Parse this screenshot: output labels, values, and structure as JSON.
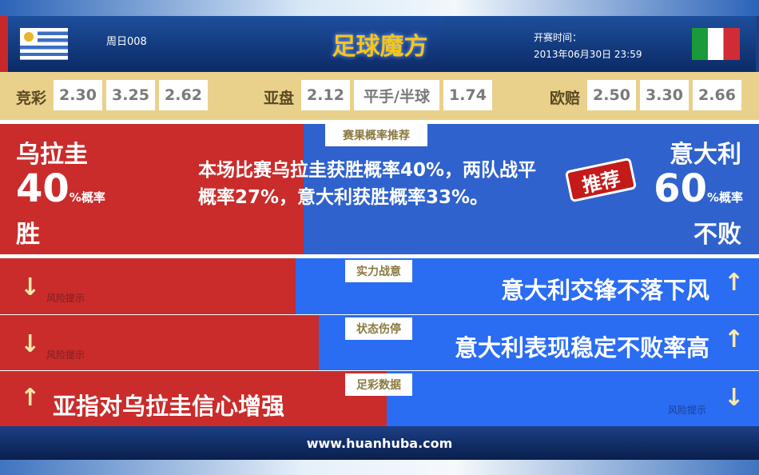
{
  "header": {
    "match_no": "周日008",
    "logo_text": "足球魔方",
    "kickoff_label": "开赛时间：",
    "kickoff_time": "2013年06月30日 23:59",
    "home_flag": "uruguay-flag",
    "away_flag": "italy-flag"
  },
  "odds": {
    "jingcai": {
      "label": "竞彩",
      "values": [
        "2.30",
        "3.25",
        "2.62"
      ]
    },
    "yapan": {
      "label": "亚盘",
      "values": [
        "2.12",
        "平手/半球",
        "1.74"
      ]
    },
    "oupei": {
      "label": "欧赔",
      "values": [
        "2.50",
        "3.30",
        "2.66"
      ]
    }
  },
  "prediction": {
    "section_label": "赛果概率推荐",
    "home_team": "乌拉圭",
    "home_pct": "40",
    "pct_suffix": "%概率",
    "home_result": "胜",
    "summary": "本场比赛乌拉圭获胜概率40%，两队战平概率27%，意大利获胜概率33%。",
    "recommend_badge": "推荐",
    "away_team": "意大利",
    "away_pct": "60",
    "away_result": "不败",
    "home_share": 40,
    "away_share": 60
  },
  "rows": [
    {
      "label": "实力战意",
      "left_text": "",
      "left_risk": "风险提示",
      "right_text": "意大利交锋不落下风",
      "right_risk": "",
      "left_arrow": "down",
      "right_arrow": "up"
    },
    {
      "label": "状态伤停",
      "left_text": "",
      "left_risk": "风险提示",
      "right_text": "意大利表现稳定不败率高",
      "right_risk": "",
      "left_arrow": "down",
      "right_arrow": "up"
    },
    {
      "label": "足彩数据",
      "left_text": "亚指对乌拉圭信心增强",
      "left_risk": "",
      "right_text": "",
      "right_risk": "风险提示",
      "left_arrow": "up",
      "right_arrow": "down"
    }
  ],
  "arrows": {
    "up": "↑",
    "down": "↓"
  },
  "footer": {
    "url": "www.huanhuba.com"
  },
  "colors": {
    "home": "#c92c2b",
    "away": "#2a6cf2",
    "odds_band": "#e9d18c",
    "header": "#0b2a66"
  }
}
